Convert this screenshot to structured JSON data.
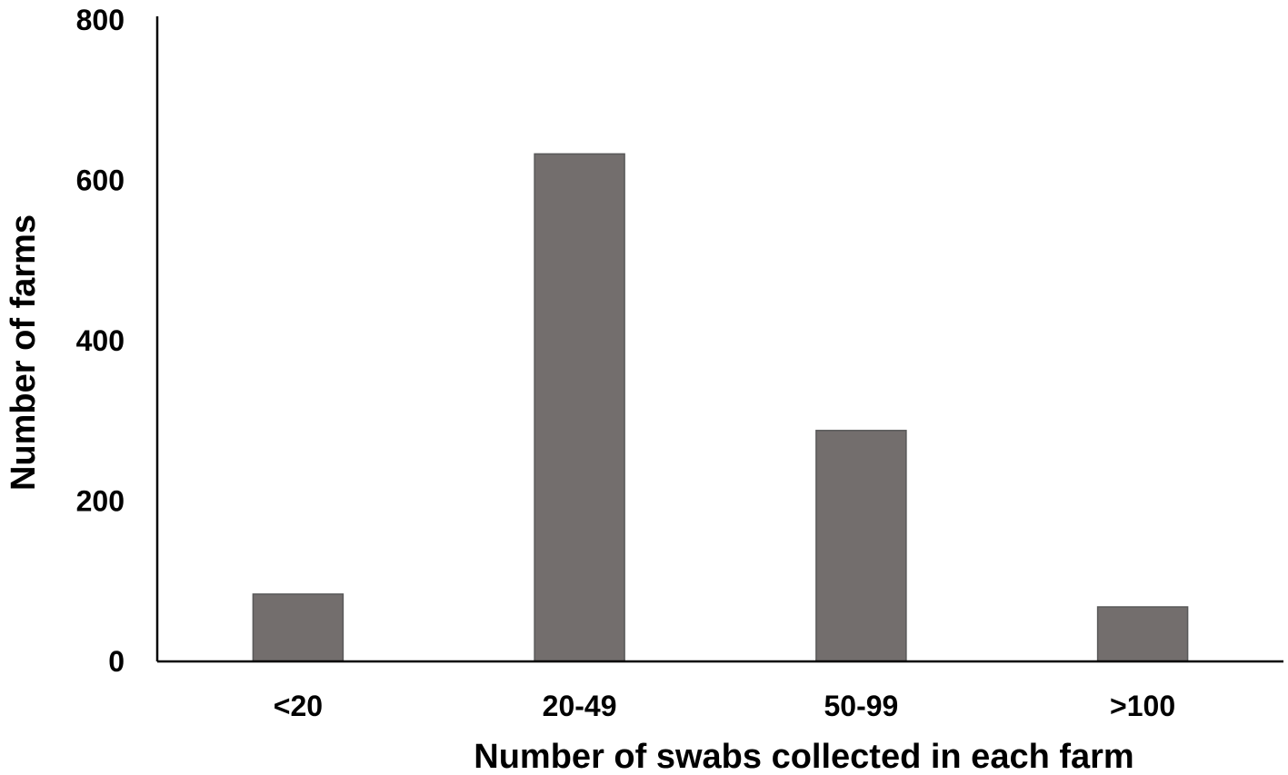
{
  "chart_data": {
    "type": "bar",
    "title": "",
    "xlabel": "Number of swabs collected in each farm",
    "ylabel": "Number of farms",
    "categories": [
      "<20",
      "20-49",
      "50-99",
      ">100"
    ],
    "values": [
      84,
      633,
      288,
      68
    ],
    "ylim": [
      0,
      800
    ],
    "yticks": [
      "0",
      "200",
      "400",
      "600",
      "800"
    ],
    "grid": false,
    "legend": "none",
    "bar_color": "#736e6d",
    "bar_edge_color": "#595959",
    "axis_color": "#000000"
  }
}
